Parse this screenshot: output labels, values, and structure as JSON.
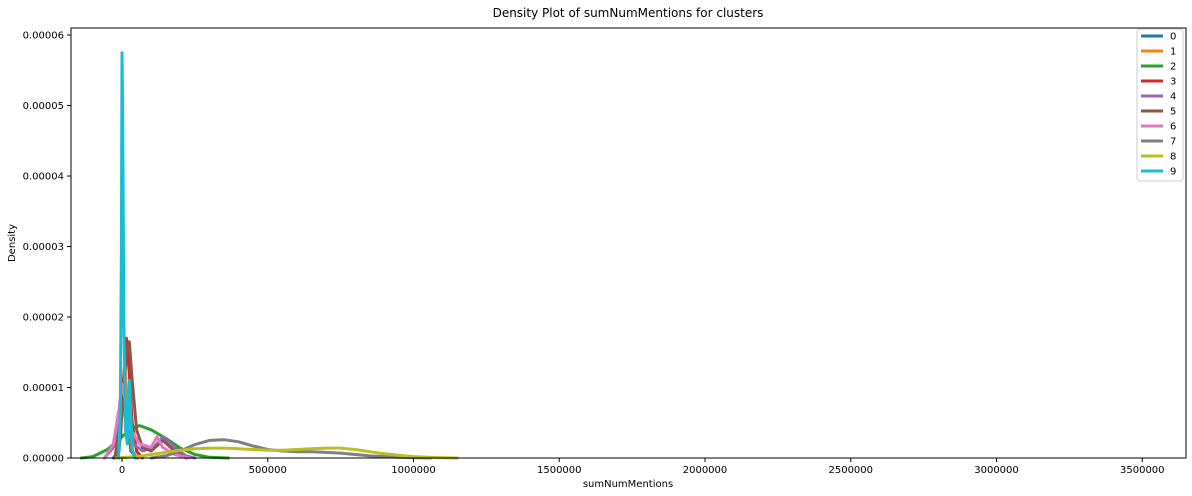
{
  "chart_data": {
    "type": "line",
    "title": "Density Plot of sumNumMentions for clusters",
    "xlabel": "sumNumMentions",
    "ylabel": "Density",
    "xlim": [
      -175000,
      3650000
    ],
    "ylim": [
      0,
      6.1e-05
    ],
    "x_ticks": [
      0,
      500000,
      1000000,
      1500000,
      2000000,
      2500000,
      3000000,
      3500000
    ],
    "x_tick_labels": [
      "0",
      "500000",
      "1000000",
      "1500000",
      "2000000",
      "2500000",
      "3000000",
      "3500000"
    ],
    "y_ticks": [
      0,
      1e-05,
      2e-05,
      3e-05,
      4e-05,
      5e-05,
      6e-05
    ],
    "y_tick_labels": [
      "0.00000",
      "0.00001",
      "0.00002",
      "0.00003",
      "0.00004",
      "0.00005",
      "0.00006"
    ],
    "grid": false,
    "legend_position": "top-right",
    "series": [
      {
        "name": "0",
        "color": "#1f77b4",
        "x": [
          -30000,
          -10000,
          0,
          10000,
          20000,
          30000,
          50000
        ],
        "y": [
          0,
          1e-06,
          8e-06,
          1.2e-05,
          6e-06,
          1e-06,
          0
        ]
      },
      {
        "name": "1",
        "color": "#ff7f0e",
        "x": [
          -25000,
          -10000,
          0,
          10000,
          20000,
          35000,
          55000
        ],
        "y": [
          0,
          2e-06,
          9e-06,
          1.3e-05,
          7e-06,
          1e-06,
          0
        ]
      },
      {
        "name": "2",
        "color": "#2ca02c",
        "x": [
          -140000,
          -100000,
          -50000,
          0,
          30000,
          60000,
          100000,
          150000,
          200000,
          250000,
          300000,
          365000
        ],
        "y": [
          0,
          2e-07,
          1.2e-06,
          3e-06,
          4.2e-06,
          4.6e-06,
          4e-06,
          2.8e-06,
          1.4e-06,
          5e-07,
          1e-07,
          0
        ]
      },
      {
        "name": "3",
        "color": "#d62728",
        "x": [
          -20000,
          -5000,
          5000,
          15000,
          25000,
          35000,
          50000,
          70000
        ],
        "y": [
          0,
          3e-06,
          1.1e-05,
          1.7e-05,
          1.2e-05,
          5e-06,
          1e-06,
          0
        ]
      },
      {
        "name": "4",
        "color": "#9467bd",
        "x": [
          -60000,
          -20000,
          0,
          20000,
          40000,
          70000,
          110000,
          140000,
          180000,
          220000,
          250000
        ],
        "y": [
          0,
          2e-06,
          8e-06,
          6e-06,
          2e-06,
          1e-06,
          1.5e-06,
          3e-06,
          1.5e-06,
          3e-07,
          0
        ]
      },
      {
        "name": "5",
        "color": "#8c564b",
        "x": [
          -25000,
          0,
          15000,
          25000,
          35000,
          50000,
          70000,
          100000,
          140000,
          180000,
          220000
        ],
        "y": [
          0,
          6e-06,
          1.5e-05,
          1.65e-05,
          1.1e-05,
          4e-06,
          1.5e-06,
          1e-06,
          2.5e-06,
          1e-06,
          0
        ]
      },
      {
        "name": "6",
        "color": "#e377c2",
        "x": [
          -60000,
          -30000,
          -10000,
          0,
          10000,
          30000,
          60000,
          100000,
          120000,
          140000,
          180000,
          230000
        ],
        "y": [
          0,
          2e-06,
          7e-06,
          1.05e-05,
          8.5e-06,
          4e-06,
          2e-06,
          1.5e-06,
          3e-06,
          1.5e-06,
          5e-07,
          0
        ]
      },
      {
        "name": "7",
        "color": "#7f7f7f",
        "x": [
          100000,
          150000,
          200000,
          250000,
          300000,
          350000,
          400000,
          450000,
          500000,
          550000,
          600000,
          650000,
          700000,
          750000,
          800000,
          850000,
          900000,
          950000,
          1000000,
          1060000
        ],
        "y": [
          0,
          3e-07,
          1e-06,
          1.9e-06,
          2.5e-06,
          2.6e-06,
          2.3e-06,
          1.7e-06,
          1.2e-06,
          1e-06,
          9e-07,
          9e-07,
          8e-07,
          7e-07,
          5e-07,
          3e-07,
          2e-07,
          1e-07,
          5e-08,
          0
        ]
      },
      {
        "name": "8",
        "color": "#bcbd22",
        "x": [
          -20000,
          50000,
          100000,
          150000,
          200000,
          250000,
          300000,
          350000,
          400000,
          450000,
          500000,
          550000,
          600000,
          650000,
          700000,
          750000,
          800000,
          850000,
          900000,
          950000,
          1000000,
          1050000,
          1100000,
          1150000
        ],
        "y": [
          0,
          2e-07,
          5e-07,
          8e-07,
          1.1e-06,
          1.3e-06,
          1.4e-06,
          1.4e-06,
          1.3e-06,
          1.2e-06,
          1.1e-06,
          1.1e-06,
          1.2e-06,
          1.3e-06,
          1.4e-06,
          1.4e-06,
          1.2e-06,
          9e-07,
          6e-07,
          4e-07,
          2e-07,
          1e-07,
          3e-08,
          0
        ]
      },
      {
        "name": "9",
        "color": "#17becf",
        "x": [
          -12000,
          -6000,
          -2000,
          0,
          2000,
          6000,
          12000,
          18000,
          22000,
          26000,
          30000,
          36000,
          45000
        ],
        "y": [
          0,
          6e-06,
          3e-05,
          5.75e-05,
          5e-05,
          2e-05,
          4e-06,
          2e-06,
          8e-06,
          1.1e-05,
          6e-06,
          1e-06,
          0
        ]
      }
    ]
  }
}
